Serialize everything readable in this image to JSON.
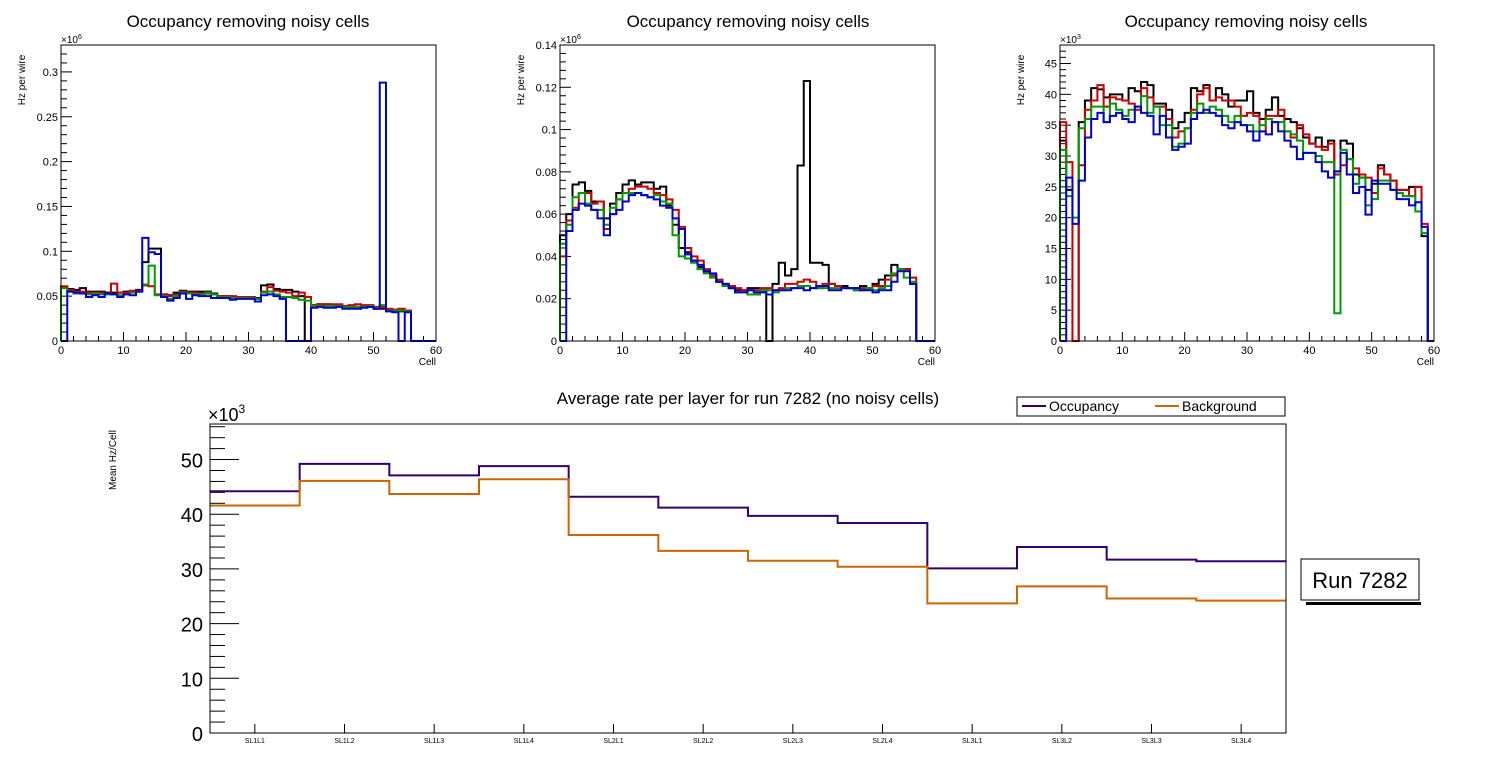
{
  "chart_data": [
    {
      "type": "line",
      "subtype": "step-histogram",
      "title": "Occupancy removing noisy cells",
      "xlabel": "Cell",
      "ylabel": "Hz per wire",
      "y_multiplier_label": "×10",
      "y_multiplier_exp": "6",
      "xlim": [
        0,
        60
      ],
      "ylim": [
        0,
        0.33
      ],
      "x_ticks": [
        "0",
        "10",
        "20",
        "30",
        "40",
        "50",
        "60"
      ],
      "y_ticks": [
        "0",
        "0.05",
        "0.1",
        "0.15",
        "0.2",
        "0.25",
        "0.3"
      ],
      "y_tick_values": [
        0,
        0.05,
        0.1,
        0.15,
        0.2,
        0.25,
        0.3
      ],
      "series": [
        {
          "name": "black",
          "color": "#000000",
          "values": [
            0.06,
            0.058,
            0.057,
            0.059,
            0.055,
            0.055,
            0.055,
            0.054,
            0.054,
            0.054,
            0.055,
            0.055,
            0.057,
            0.088,
            0.103,
            0.103,
            0.052,
            0.051,
            0.054,
            0.056,
            0.055,
            0.055,
            0.055,
            0.055,
            0.053,
            0.05,
            0.05,
            0.049,
            0.049,
            0.049,
            0.049,
            0.048,
            0.062,
            0.063,
            0.058,
            0.057,
            0.057,
            0.055,
            0.05,
            0,
            0.04,
            0.041,
            0.041,
            0.04,
            0.04,
            0.038,
            0.037,
            0.038,
            0.038,
            0.038,
            0.036,
            0.036,
            0.035,
            0.034,
            0.033,
            0.033,
            0,
            0,
            0,
            0
          ]
        },
        {
          "name": "red",
          "color": "#cc0000",
          "values": [
            0.061,
            0.057,
            0.055,
            0.055,
            0.054,
            0.054,
            0.054,
            0.053,
            0.064,
            0.054,
            0.054,
            0.056,
            0.056,
            0.062,
            0.061,
            0.052,
            0.052,
            0.05,
            0.052,
            0.055,
            0.054,
            0.054,
            0.053,
            0.053,
            0.052,
            0.05,
            0.05,
            0.05,
            0.049,
            0.049,
            0.049,
            0.047,
            0.055,
            0.06,
            0.056,
            0.055,
            0.054,
            0.05,
            0.054,
            0.049,
            0.04,
            0.041,
            0.041,
            0.041,
            0.041,
            0.039,
            0.04,
            0.041,
            0.04,
            0.04,
            0.038,
            0.038,
            0.036,
            0.035,
            0.036,
            0.034,
            0,
            0,
            0,
            0
          ]
        },
        {
          "name": "green",
          "color": "#009900",
          "values": [
            0.059,
            0.055,
            0.053,
            0.053,
            0.052,
            0.053,
            0.052,
            0.052,
            0.052,
            0.051,
            0.052,
            0.054,
            0.055,
            0.063,
            0.084,
            0.051,
            0.05,
            0.047,
            0.05,
            0.054,
            0.053,
            0.052,
            0.052,
            0.054,
            0.052,
            0.049,
            0.049,
            0.048,
            0.048,
            0.048,
            0.048,
            0.047,
            0.054,
            0.055,
            0.052,
            0.049,
            0.049,
            0.048,
            0.046,
            0.045,
            0.039,
            0.039,
            0.039,
            0.039,
            0.039,
            0.038,
            0.038,
            0.038,
            0.038,
            0.039,
            0.037,
            0.04,
            0.034,
            0.034,
            0.034,
            0.033,
            0,
            0,
            0,
            0
          ]
        },
        {
          "name": "blue",
          "color": "#0000cc",
          "values": [
            0,
            0.055,
            0.054,
            0.053,
            0.049,
            0.051,
            0.049,
            0.053,
            0.052,
            0.049,
            0.052,
            0.051,
            0.055,
            0.115,
            0.099,
            0.097,
            0.049,
            0.045,
            0.048,
            0.053,
            0.047,
            0.051,
            0.05,
            0.05,
            0.048,
            0.048,
            0.048,
            0.046,
            0.047,
            0.047,
            0.047,
            0.044,
            0.051,
            0.052,
            0.05,
            0.047,
            0,
            0,
            0,
            0,
            0.037,
            0.038,
            0.037,
            0.037,
            0.038,
            0.036,
            0.036,
            0.036,
            0.037,
            0.038,
            0.036,
            0.288,
            0.033,
            0.032,
            0,
            0.032,
            0,
            0,
            0,
            0
          ]
        }
      ]
    },
    {
      "type": "line",
      "subtype": "step-histogram",
      "title": "Occupancy removing noisy cells",
      "xlabel": "Cell",
      "ylabel": "Hz per wire",
      "y_multiplier_label": "×10",
      "y_multiplier_exp": "6",
      "xlim": [
        0,
        60
      ],
      "ylim": [
        0,
        0.14
      ],
      "x_ticks": [
        "0",
        "10",
        "20",
        "30",
        "40",
        "50",
        "60"
      ],
      "y_ticks": [
        "0",
        "0.02",
        "0.04",
        "0.06",
        "0.08",
        "0.1",
        "0.12",
        "0.14"
      ],
      "y_tick_values": [
        0,
        0.02,
        0.04,
        0.06,
        0.08,
        0.1,
        0.12,
        0.14
      ],
      "series": [
        {
          "name": "black",
          "color": "#000000",
          "values": [
            0.05,
            0.06,
            0.074,
            0.075,
            0.071,
            0.066,
            0.066,
            0.058,
            0.065,
            0.07,
            0.074,
            0.076,
            0.074,
            0.075,
            0.075,
            0.072,
            0.073,
            0.064,
            0.055,
            0.044,
            0.042,
            0.038,
            0.035,
            0.033,
            0.031,
            0.028,
            0.026,
            0.025,
            0.024,
            0.024,
            0.025,
            0.025,
            0.024,
            0,
            0.027,
            0.037,
            0.031,
            0.034,
            0.083,
            0.123,
            0.037,
            0.037,
            0.036,
            0.027,
            0.026,
            0.026,
            0.025,
            0.025,
            0.026,
            0.025,
            0.027,
            0.029,
            0.031,
            0.036,
            0.034,
            0.034,
            0.027,
            0,
            0,
            0
          ]
        },
        {
          "name": "red",
          "color": "#cc0000",
          "values": [
            0.04,
            0.057,
            0.063,
            0.07,
            0.07,
            0.065,
            0.066,
            0.053,
            0.06,
            0.067,
            0.07,
            0.072,
            0.073,
            0.073,
            0.072,
            0.07,
            0.069,
            0.067,
            0.062,
            0.054,
            0.044,
            0.04,
            0.038,
            0.034,
            0.031,
            0.029,
            0.027,
            0.026,
            0.025,
            0.024,
            0.024,
            0.024,
            0.025,
            0.025,
            0.024,
            0.025,
            0.027,
            0.027,
            0.028,
            0.029,
            0.028,
            0.025,
            0.027,
            0.027,
            0.026,
            0.025,
            0.025,
            0.024,
            0.025,
            0.025,
            0.026,
            0.026,
            0.029,
            0.031,
            0.034,
            0.034,
            0.03,
            0,
            0,
            0
          ]
        },
        {
          "name": "green",
          "color": "#009900",
          "values": [
            0.046,
            0.055,
            0.068,
            0.07,
            0.065,
            0.062,
            0.062,
            0.055,
            0.063,
            0.067,
            0.07,
            0.07,
            0.07,
            0.069,
            0.068,
            0.069,
            0.066,
            0.065,
            0.05,
            0.04,
            0.039,
            0.037,
            0.034,
            0.032,
            0.03,
            0.028,
            0.026,
            0.025,
            0.023,
            0.023,
            0.022,
            0.022,
            0.024,
            0.024,
            0.023,
            0.024,
            0.025,
            0.025,
            0.026,
            0.026,
            0.025,
            0.025,
            0.025,
            0.025,
            0.025,
            0.025,
            0.025,
            0.024,
            0.024,
            0.025,
            0.024,
            0.025,
            0.026,
            0.032,
            0.034,
            0.03,
            0.028,
            0,
            0,
            0
          ]
        },
        {
          "name": "blue",
          "color": "#0000cc",
          "values": [
            0,
            0.052,
            0.062,
            0.065,
            0.064,
            0.062,
            0.058,
            0.05,
            0.06,
            0.062,
            0.066,
            0.069,
            0.07,
            0.069,
            0.068,
            0.067,
            0.064,
            0.063,
            0.058,
            0.053,
            0.041,
            0.038,
            0.036,
            0.033,
            0.032,
            0.028,
            0.027,
            0.025,
            0.023,
            0.023,
            0.024,
            0.023,
            0.023,
            0.022,
            0.024,
            0.024,
            0.024,
            0.025,
            0.025,
            0.024,
            0.025,
            0.026,
            0.026,
            0.024,
            0.024,
            0.025,
            0.025,
            0.025,
            0.024,
            0.024,
            0.023,
            0.024,
            0.024,
            0.028,
            0.033,
            0.033,
            0.027,
            0,
            0,
            0
          ]
        }
      ]
    },
    {
      "type": "line",
      "subtype": "step-histogram",
      "title": "Occupancy removing noisy cells",
      "xlabel": "Cell",
      "ylabel": "Hz per wire",
      "y_multiplier_label": "×10",
      "y_multiplier_exp": "3",
      "xlim": [
        0,
        60
      ],
      "ylim": [
        0,
        48
      ],
      "x_ticks": [
        "0",
        "10",
        "20",
        "30",
        "40",
        "50",
        "60"
      ],
      "y_ticks": [
        "0",
        "5",
        "10",
        "15",
        "20",
        "25",
        "30",
        "35",
        "40",
        "45"
      ],
      "y_tick_values": [
        0,
        5,
        10,
        15,
        20,
        25,
        30,
        35,
        40,
        45
      ],
      "series": [
        {
          "name": "black",
          "color": "#000000",
          "values": [
            32.5,
            24.5,
            0,
            35.5,
            39,
            41,
            40.8,
            39.5,
            40,
            40,
            39,
            41,
            40.5,
            42,
            41.5,
            38.5,
            38.5,
            37.5,
            34.5,
            35.5,
            37,
            41,
            40.5,
            41.5,
            39,
            41,
            40,
            38,
            39,
            39,
            40.5,
            37,
            36,
            37.5,
            39.5,
            36.5,
            36,
            35.5,
            34.5,
            33,
            32,
            33,
            31.5,
            32.5,
            27.5,
            32.5,
            32,
            27,
            26.5,
            24.5,
            25.5,
            28.5,
            27,
            26,
            24.5,
            24.5,
            25,
            25,
            17,
            0
          ]
        },
        {
          "name": "red",
          "color": "#cc0000",
          "values": [
            35.5,
            29,
            0,
            28.5,
            37.5,
            39,
            41.5,
            38,
            39.5,
            39.2,
            39,
            38.5,
            37.5,
            41,
            39.5,
            38,
            38,
            36,
            33,
            34,
            34.5,
            37.5,
            40,
            41,
            39,
            39.5,
            39,
            39,
            38,
            36.5,
            37,
            36.5,
            34,
            36.5,
            36.5,
            37.5,
            34,
            33,
            35,
            33.5,
            32,
            31.5,
            31,
            32,
            27,
            28.5,
            29.5,
            28,
            27,
            26.5,
            24,
            28,
            27,
            26,
            24.5,
            24.5,
            23.5,
            25,
            19,
            0
          ]
        },
        {
          "name": "green",
          "color": "#009900",
          "values": [
            31,
            23.5,
            20,
            34.5,
            36,
            38,
            38,
            35.5,
            38.5,
            37.5,
            36.5,
            37.5,
            38,
            39.7,
            37,
            38,
            35,
            35,
            31.5,
            32,
            34.5,
            37,
            38.5,
            37,
            38,
            37.5,
            36.5,
            35.5,
            36.5,
            35,
            35,
            34,
            35,
            36,
            35.5,
            35.5,
            34,
            33.5,
            32.5,
            30.5,
            30.5,
            30,
            29,
            29,
            4.5,
            31,
            29.5,
            25.5,
            26.5,
            22,
            23,
            26,
            26,
            24.5,
            24,
            23.5,
            23.5,
            21,
            17.5,
            0
          ]
        },
        {
          "name": "blue",
          "color": "#0000cc",
          "values": [
            0,
            26.5,
            19,
            26,
            33,
            36,
            37,
            35.5,
            36.5,
            37,
            36,
            35.5,
            38,
            37,
            36.5,
            33.5,
            36.5,
            33,
            31,
            31.5,
            32,
            36,
            37,
            37.5,
            37,
            36.5,
            35,
            34.5,
            35.5,
            35,
            34,
            32.5,
            34,
            33.5,
            35.5,
            34,
            32.5,
            31.5,
            29.5,
            30.5,
            30.5,
            29,
            27.5,
            26.5,
            27.5,
            30.5,
            27,
            24,
            25,
            20.5,
            26,
            25.5,
            25.5,
            24.5,
            23,
            23,
            22,
            22.5,
            18.5,
            0
          ]
        }
      ]
    },
    {
      "type": "line",
      "subtype": "step",
      "title": "Average rate per layer for run 7282 (no noisy cells)",
      "xlabel": "",
      "ylabel": "Mean Hz/Cell",
      "y_multiplier_label": "×10",
      "y_multiplier_exp": "3",
      "categories": [
        "SL1L1",
        "SL1L2",
        "SL1L3",
        "SL1L4",
        "SL2L1",
        "SL2L2",
        "SL2L3",
        "SL2L4",
        "SL3L1",
        "SL3L2",
        "SL3L3",
        "SL3L4"
      ],
      "ylim": [
        0,
        56.5
      ],
      "y_ticks": [
        "0",
        "10",
        "20",
        "30",
        "40",
        "50"
      ],
      "y_tick_values": [
        0,
        10,
        20,
        30,
        40,
        50
      ],
      "legend": {
        "position": "top-right",
        "entries": [
          "Occupancy",
          "Background"
        ]
      },
      "series": [
        {
          "name": "Occupancy",
          "color": "#33006f",
          "values": [
            44.2,
            49.2,
            47.1,
            48.8,
            43.2,
            41.2,
            39.7,
            38.4,
            30.1,
            34.0,
            31.7,
            31.4
          ]
        },
        {
          "name": "Background",
          "color": "#cc6600",
          "values": [
            41.6,
            46.1,
            43.7,
            46.4,
            36.2,
            33.3,
            31.5,
            30.4,
            23.7,
            26.8,
            24.6,
            24.2
          ]
        }
      ],
      "annotation": "Run 7282"
    }
  ]
}
